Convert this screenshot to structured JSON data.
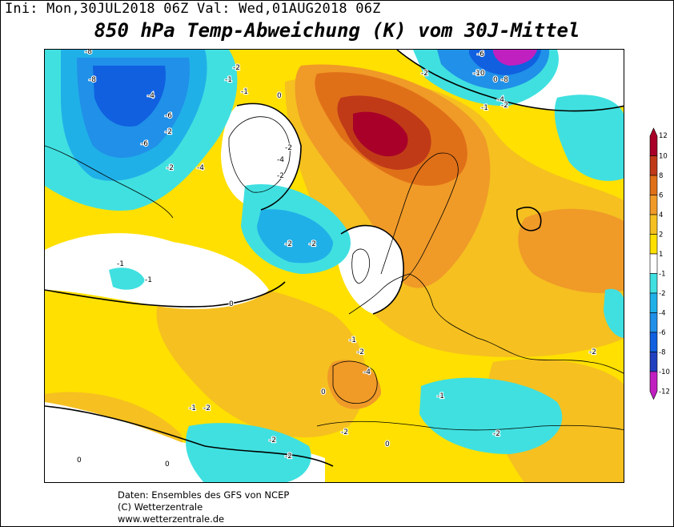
{
  "header": {
    "init_text": "Ini: Mon,30JUL2018 06Z Val: Wed,01AUG2018 06Z",
    "title": "850 hPa Temp-Abweichung (K) vom 30J-Mittel"
  },
  "legend": {
    "ticks": [
      "12",
      "10",
      "8",
      "6",
      "4",
      "2",
      "1",
      "-1",
      "-2",
      "-4",
      "-6",
      "-8",
      "-10",
      "-12"
    ],
    "bands": [
      {
        "label": "10 to 12",
        "color": "#a80028"
      },
      {
        "label": "8 to 10",
        "color": "#c03a18"
      },
      {
        "label": "6 to 8",
        "color": "#e07018"
      },
      {
        "label": "4 to 6",
        "color": "#f09a28"
      },
      {
        "label": "2 to 4",
        "color": "#f5c020"
      },
      {
        "label": "1 to 2",
        "color": "#ffe000"
      },
      {
        "label": "-1 to 1",
        "color": "#ffffff"
      },
      {
        "label": "-2 to -1",
        "color": "#40e0e0"
      },
      {
        "label": "-4 to -2",
        "color": "#20b0e8"
      },
      {
        "label": "-6 to -4",
        "color": "#2090e8"
      },
      {
        "label": "-8 to -6",
        "color": "#1060e0"
      },
      {
        "label": "-10 to -8",
        "color": "#2040c0"
      },
      {
        "label": "-12 to -10",
        "color": "#c020c0"
      }
    ]
  },
  "map_labels": [
    "-8",
    "-8",
    "-6",
    "-6",
    "-4",
    "-4",
    "-2",
    "-2",
    "-1",
    "0",
    "-1",
    "-2",
    "-6",
    "-10",
    "-8",
    "-4",
    "-2",
    "-1",
    "-2",
    "-2",
    "-4",
    "-2",
    "-2",
    "-2",
    "-1",
    "-1",
    "0",
    "0",
    "0",
    "-1",
    "-2",
    "-4",
    "-1",
    "-2",
    "-2",
    "-2",
    "-2",
    "-1",
    "-2",
    "-2",
    "0",
    "0",
    "0"
  ],
  "footer": {
    "line1": "Daten: Ensembles des GFS von NCEP",
    "line2": "(C) Wetterzentrale",
    "line3": "www.wetterzentrale.de"
  }
}
